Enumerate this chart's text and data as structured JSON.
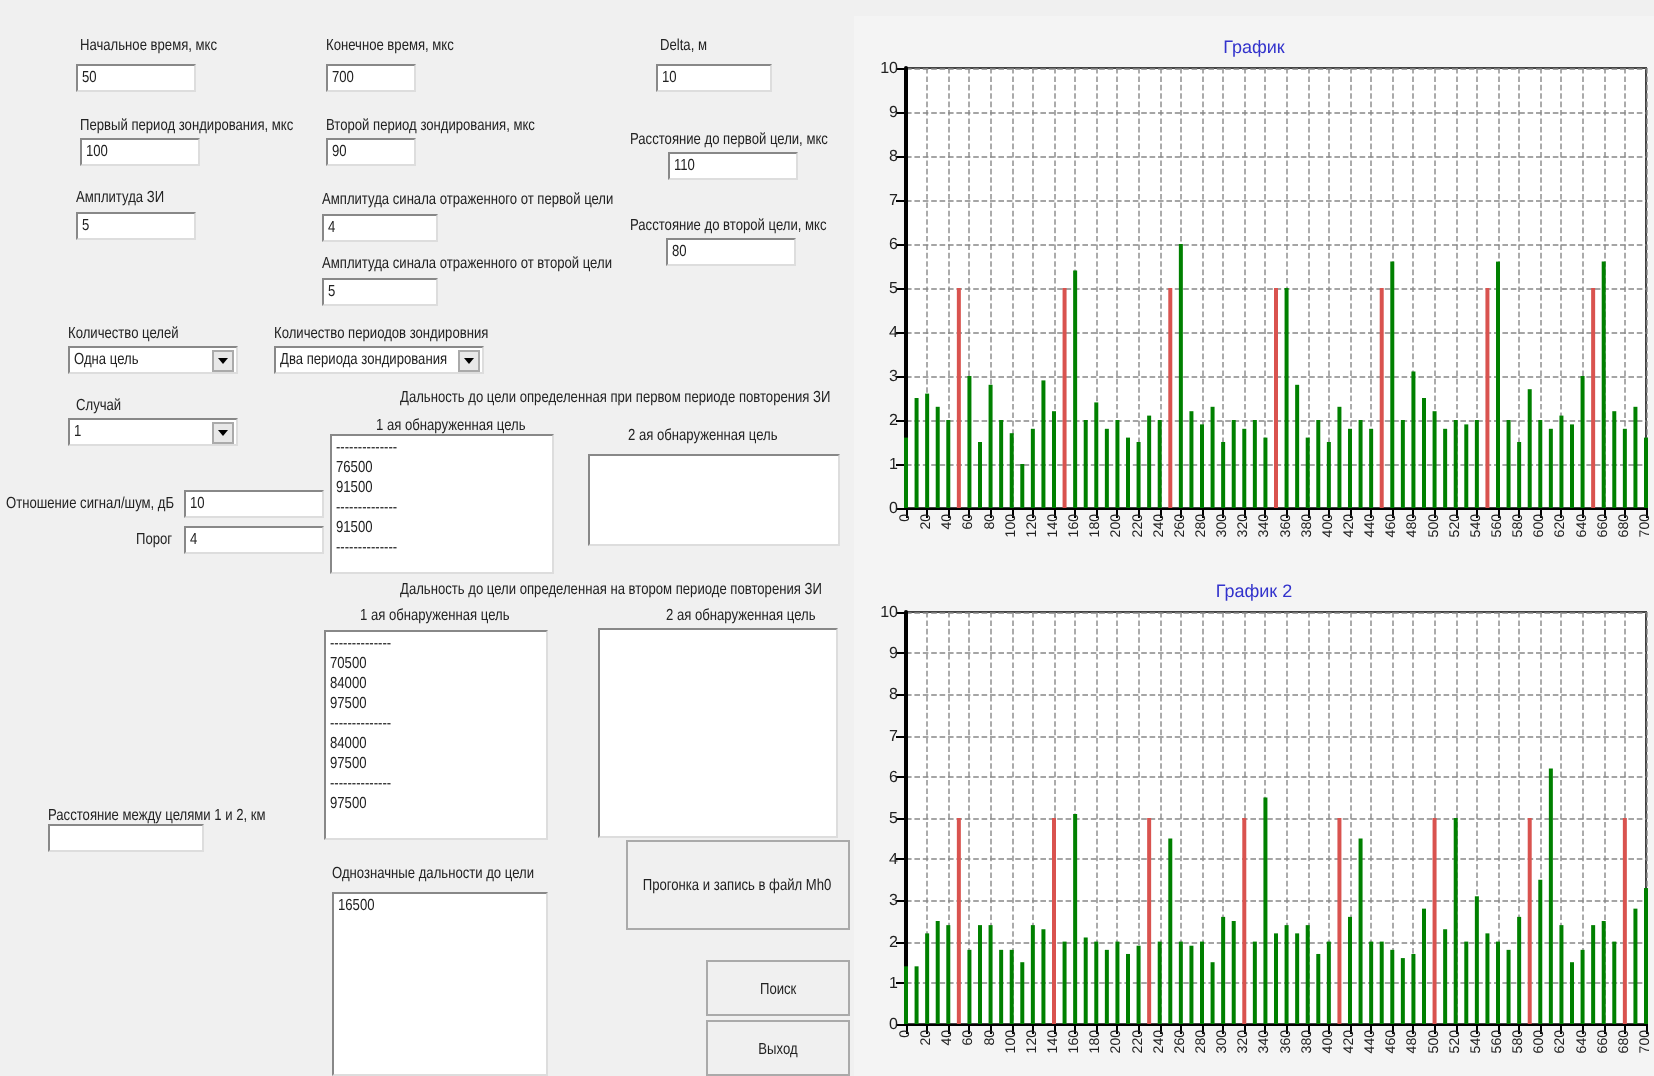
{
  "chart_data": [
    {
      "type": "other",
      "annotations": [
        "Начальное время, мкс",
        "50",
        "Конечное время, мкс",
        "700",
        "Delta, м",
        "10",
        "Первый период зондирования, мкс",
        "100",
        "Второй период зондирования, мкс",
        "90",
        "Расстояние до первой цели, мкс",
        "110",
        "Амплитуда ЗИ",
        "5",
        "Амплитуда  синала отраженного от первой цели",
        "4",
        "Расстояние до второй цели, мкс",
        "80",
        "Амплитуда  синала отраженного от второй цели",
        "5",
        "Количество целей",
        "Одна цель",
        "Количество периодов зондировния",
        "Два периода зондирования",
        "Дальность до цели определенная при первом периоде повторения ЗИ",
        "Случай",
        "1",
        "1 ая обнаруженная цель",
        "--------------\n76500\n91500\n--------------\n91500\n--------------",
        "2 ая обнаруженная цель",
        "Отношение сигнал/шум, дБ",
        "10",
        "Порог",
        "4",
        "Дальность до цели определенная на втором периоде повторения ЗИ",
        "1 ая обнаруженная цель",
        "--------------\n70500\n84000\n97500\n--------------\n84000\n97500\n--------------\n97500",
        "2 ая обнаруженная цель",
        "Расстояние между целями 1 и 2, км",
        "Однозначные дальности до цели",
        "16500",
        "Прогонка и запись в файл Mh0",
        "Поиск",
        "Выход"
      ]
    },
    {
      "type": "bar",
      "title": "График",
      "xlim": [
        0,
        700
      ],
      "xticks": [
        0,
        20,
        40,
        60,
        80,
        100,
        120,
        140,
        160,
        180,
        200,
        220,
        240,
        260,
        280,
        300,
        320,
        340,
        360,
        380,
        400,
        420,
        440,
        460,
        480,
        500,
        520,
        540,
        560,
        580,
        600,
        620,
        640,
        660,
        680,
        700
      ],
      "ylim": [
        0,
        10
      ],
      "yticks": [
        0,
        1,
        2,
        3,
        4,
        5,
        6,
        7,
        8,
        9,
        10
      ],
      "grid": true,
      "series": [
        {
          "color": "#008000",
          "x": [
            0,
            10,
            20,
            30,
            40,
            50,
            60,
            70,
            80,
            90,
            100,
            110,
            120,
            130,
            140,
            150,
            160,
            170,
            180,
            190,
            200,
            210,
            220,
            230,
            240,
            250,
            260,
            270,
            280,
            290,
            300,
            310,
            320,
            330,
            340,
            350,
            360,
            370,
            380,
            390,
            400,
            410,
            420,
            430,
            440,
            450,
            460,
            470,
            480,
            490,
            500,
            510,
            520,
            530,
            540,
            550,
            560,
            570,
            580,
            590,
            600,
            610,
            620,
            630,
            640,
            650,
            660,
            670,
            680,
            690,
            700
          ],
          "values": [
            1.6,
            2.5,
            2.6,
            2.3,
            2.0,
            null,
            3.0,
            1.5,
            2.8,
            2.0,
            1.7,
            1.0,
            1.8,
            2.9,
            2.2,
            null,
            5.4,
            2.0,
            2.4,
            1.8,
            2.0,
            1.6,
            1.5,
            2.1,
            2.0,
            null,
            6.0,
            2.2,
            1.9,
            2.3,
            1.5,
            2.0,
            1.8,
            2.0,
            1.6,
            null,
            5.0,
            2.8,
            1.6,
            2.0,
            1.5,
            2.3,
            1.8,
            2.0,
            1.8,
            null,
            5.6,
            2.0,
            3.1,
            2.5,
            2.2,
            1.8,
            2.0,
            1.9,
            2.0,
            null,
            5.6,
            2.0,
            1.5,
            2.7,
            2.0,
            1.8,
            2.1,
            1.9,
            3.0,
            null,
            5.6,
            2.2,
            1.8,
            2.3,
            1.6
          ]
        },
        {
          "color": "#d9534f",
          "x": [
            50,
            150,
            250,
            350,
            450,
            550,
            650
          ],
          "values": [
            5,
            5,
            5,
            5,
            5,
            5,
            5
          ]
        }
      ]
    },
    {
      "type": "bar",
      "title": "График 2",
      "xlim": [
        0,
        700
      ],
      "xticks": [
        0,
        20,
        40,
        60,
        80,
        100,
        120,
        140,
        160,
        180,
        200,
        220,
        240,
        260,
        280,
        300,
        320,
        340,
        360,
        380,
        400,
        420,
        440,
        460,
        480,
        500,
        520,
        540,
        560,
        580,
        600,
        620,
        640,
        660,
        680,
        700
      ],
      "ylim": [
        0,
        10
      ],
      "yticks": [
        0,
        1,
        2,
        3,
        4,
        5,
        6,
        7,
        8,
        9,
        10
      ],
      "grid": true,
      "series": [
        {
          "color": "#008000",
          "x": [
            0,
            10,
            20,
            30,
            40,
            50,
            60,
            70,
            80,
            90,
            100,
            110,
            120,
            130,
            140,
            150,
            160,
            170,
            180,
            190,
            200,
            210,
            220,
            230,
            240,
            250,
            260,
            270,
            280,
            290,
            300,
            310,
            320,
            330,
            340,
            350,
            360,
            370,
            380,
            390,
            400,
            410,
            420,
            430,
            440,
            450,
            460,
            470,
            480,
            490,
            500,
            510,
            520,
            530,
            540,
            550,
            560,
            570,
            580,
            590,
            600,
            610,
            620,
            630,
            640,
            650,
            660,
            670,
            680,
            690,
            700
          ],
          "values": [
            1.4,
            1.4,
            2.2,
            2.5,
            2.4,
            null,
            1.8,
            2.4,
            2.4,
            1.8,
            1.8,
            1.5,
            2.4,
            2.3,
            null,
            2.0,
            5.1,
            2.1,
            2.0,
            1.8,
            2.0,
            1.7,
            1.9,
            null,
            2.0,
            4.5,
            2.0,
            1.9,
            2.0,
            1.5,
            2.6,
            2.5,
            null,
            2.0,
            5.5,
            2.2,
            2.4,
            2.2,
            2.4,
            1.7,
            2.0,
            null,
            2.6,
            4.5,
            2.0,
            2.0,
            1.8,
            1.6,
            1.7,
            2.8,
            null,
            2.3,
            5.0,
            2.0,
            3.1,
            2.2,
            2.0,
            1.8,
            2.6,
            null,
            3.5,
            6.2,
            2.4,
            1.5,
            1.8,
            2.4,
            2.5,
            2.0,
            null,
            2.8,
            3.3
          ]
        },
        {
          "color": "#d9534f",
          "x": [
            50,
            140,
            230,
            320,
            410,
            500,
            590,
            680
          ],
          "values": [
            5,
            5,
            5,
            5,
            5,
            5,
            5,
            5
          ]
        }
      ]
    }
  ]
}
